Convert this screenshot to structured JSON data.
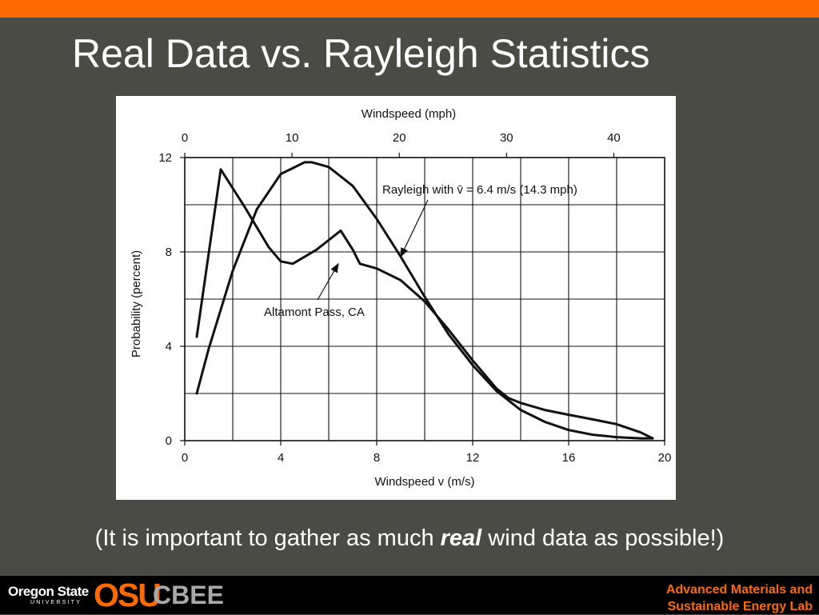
{
  "slide": {
    "title": "Real Data vs. Rayleigh Statistics",
    "caption_before": "(It is important to gather as much ",
    "caption_emphasis": "real",
    "caption_after": " wind data as possible!)"
  },
  "footer": {
    "university_name": "Oregon State",
    "university_sub": "UNIVERSITY",
    "logo_text": "OSU",
    "program": "CBEE",
    "lab_line1": "Advanced Materials and",
    "lab_line2": "Sustainable Energy Lab"
  },
  "colors": {
    "background": "#4b4b46",
    "accent": "#ff6a00",
    "footer_bg": "#000000",
    "figure_bg": "#ffffff",
    "ink": "#111111"
  },
  "chart_data": {
    "type": "line",
    "xlabel": "Windspeed v (m/s)",
    "x2label": "Windspeed (mph)",
    "ylabel": "Probability (percent)",
    "xlim": [
      0,
      20
    ],
    "ylim": [
      0,
      12
    ],
    "x2lim_mph": [
      0,
      44.74
    ],
    "xticks": [
      0,
      4,
      8,
      12,
      16,
      20
    ],
    "yticks": [
      0,
      4,
      8,
      12
    ],
    "x2ticks": [
      0,
      10,
      20,
      30,
      40
    ],
    "grid": true,
    "series": [
      {
        "name": "Rayleigh with v̄ = 6.4 m/s (14.3 mph)",
        "x": [
          0.5,
          1,
          2,
          3,
          4,
          5,
          5.3,
          6,
          7,
          8,
          9,
          10,
          11,
          12,
          13,
          14,
          15,
          16,
          17,
          18,
          19,
          19.5
        ],
        "y": [
          2.0,
          3.9,
          7.2,
          9.8,
          11.3,
          11.8,
          11.8,
          11.6,
          10.8,
          9.4,
          7.8,
          6.1,
          4.5,
          3.2,
          2.1,
          1.3,
          0.8,
          0.45,
          0.25,
          0.15,
          0.1,
          0.1
        ]
      },
      {
        "name": "Altamont Pass, CA",
        "x": [
          0.5,
          1.5,
          2.5,
          3.5,
          4,
          4.5,
          5.5,
          6.5,
          7,
          7.3,
          8,
          9,
          10,
          11,
          12,
          13,
          13.5,
          14,
          15,
          16,
          17,
          18,
          19,
          19.5
        ],
        "y": [
          4.4,
          11.5,
          9.9,
          8.2,
          7.6,
          7.5,
          8.1,
          8.9,
          8.1,
          7.5,
          7.3,
          6.8,
          5.9,
          4.7,
          3.4,
          2.2,
          1.8,
          1.6,
          1.3,
          1.1,
          0.9,
          0.7,
          0.35,
          0.1
        ]
      }
    ],
    "annotations": [
      {
        "text": "Rayleigh with v̄ = 6.4 m/s (14.3 mph)",
        "target_x": 9.0,
        "target_y": 7.8
      },
      {
        "text": "Altamont Pass, CA",
        "target_x": 6.4,
        "target_y": 7.5
      }
    ]
  }
}
